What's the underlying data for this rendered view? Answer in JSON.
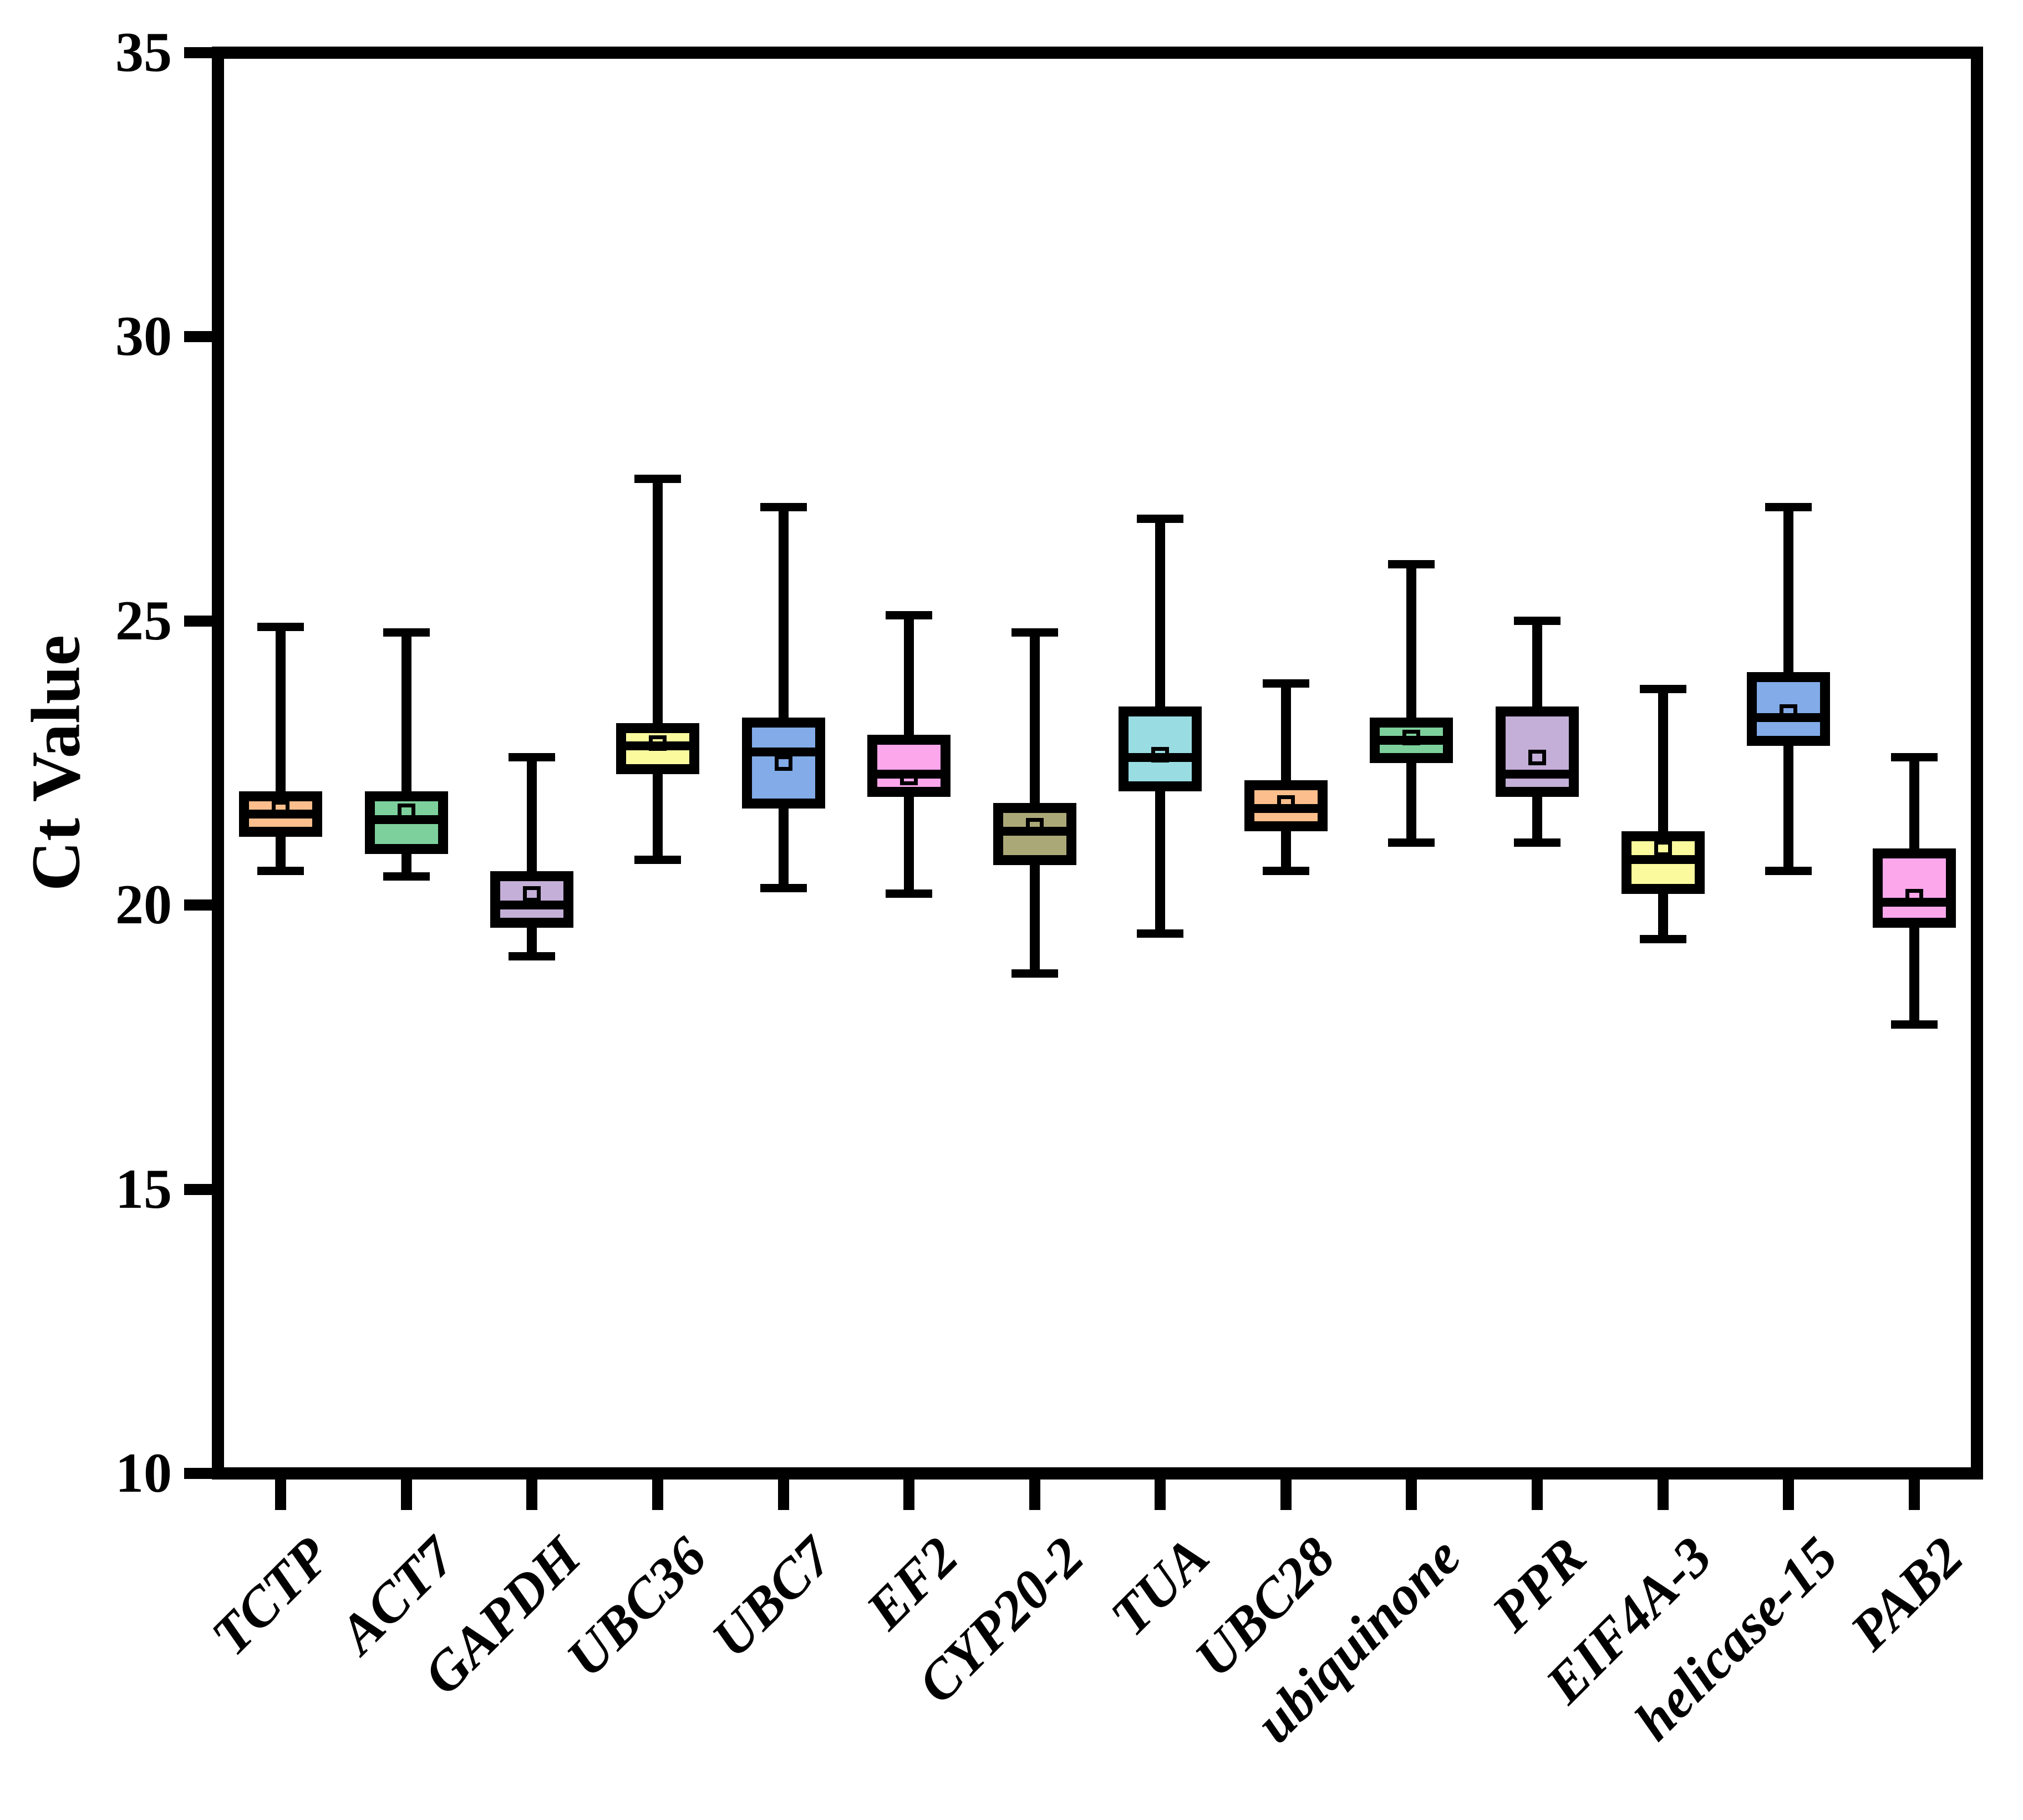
{
  "figure": {
    "background": "#ffffff",
    "axis_color": "#000000"
  },
  "chart_data": {
    "type": "boxplot",
    "title": "",
    "xlabel": "",
    "ylabel": "Ct Value",
    "ylim": [
      10,
      35
    ],
    "yticks": [
      35,
      30,
      25,
      20,
      15,
      10
    ],
    "grid": false,
    "legend": "none",
    "categories": [
      "TCTP",
      "ACT7",
      "GAPDH",
      "UBC36",
      "UBC7",
      "EF2",
      "CYP20-2",
      "TUA",
      "UBC28",
      "ubiquinone",
      "PPR",
      "EIF4A-3",
      "helicase-15",
      "PAB2"
    ],
    "series": [
      {
        "name": "TCTP",
        "color": "#FBBE8C",
        "min": 20.6,
        "q1": 21.2,
        "median": 21.6,
        "mean": 21.7,
        "q3": 22.0,
        "max": 24.9
      },
      {
        "name": "ACT7",
        "color": "#7DD09C",
        "min": 20.5,
        "q1": 20.9,
        "median": 21.5,
        "mean": 21.65,
        "q3": 22.0,
        "max": 24.8
      },
      {
        "name": "GAPDH",
        "color": "#C4AFD8",
        "min": 19.1,
        "q1": 19.6,
        "median": 20.0,
        "mean": 20.2,
        "q3": 20.6,
        "max": 22.6
      },
      {
        "name": "UBC36",
        "color": "#FBFB9E",
        "min": 20.8,
        "q1": 22.3,
        "median": 22.8,
        "mean": 22.85,
        "q3": 23.2,
        "max": 27.5
      },
      {
        "name": "UBC7",
        "color": "#82ABE8",
        "min": 20.3,
        "q1": 21.7,
        "median": 22.7,
        "mean": 22.5,
        "q3": 23.3,
        "max": 27.0
      },
      {
        "name": "EF2",
        "color": "#FCA6EC",
        "min": 20.2,
        "q1": 21.9,
        "median": 22.3,
        "mean": 22.25,
        "q3": 23.0,
        "max": 25.1
      },
      {
        "name": "CYP20-2",
        "color": "#ABA878",
        "min": 18.8,
        "q1": 20.7,
        "median": 21.3,
        "mean": 21.4,
        "q3": 21.8,
        "max": 24.8
      },
      {
        "name": "TUA",
        "color": "#99DDE3",
        "min": 19.5,
        "q1": 22.0,
        "median": 22.6,
        "mean": 22.65,
        "q3": 23.5,
        "max": 26.8
      },
      {
        "name": "UBC28",
        "color": "#FBBE8C",
        "min": 20.6,
        "q1": 21.3,
        "median": 21.7,
        "mean": 21.8,
        "q3": 22.2,
        "max": 23.9
      },
      {
        "name": "ubiquinone",
        "color": "#7DD09C",
        "min": 21.1,
        "q1": 22.5,
        "median": 22.9,
        "mean": 22.95,
        "q3": 23.3,
        "max": 26.0
      },
      {
        "name": "PPR",
        "color": "#C4AFD8",
        "min": 21.1,
        "q1": 21.9,
        "median": 22.3,
        "mean": 22.6,
        "q3": 23.5,
        "max": 25.0
      },
      {
        "name": "EIF4A-3",
        "color": "#FBFB9E",
        "min": 19.4,
        "q1": 20.2,
        "median": 20.8,
        "mean": 21.0,
        "q3": 21.3,
        "max": 23.8
      },
      {
        "name": "helicase-15",
        "color": "#82ABE8",
        "min": 20.6,
        "q1": 22.8,
        "median": 23.3,
        "mean": 23.4,
        "q3": 24.1,
        "max": 27.0
      },
      {
        "name": "PAB2",
        "color": "#FCA6EC",
        "min": 17.9,
        "q1": 19.6,
        "median": 20.05,
        "mean": 20.15,
        "q3": 21.0,
        "max": 22.6
      }
    ]
  }
}
